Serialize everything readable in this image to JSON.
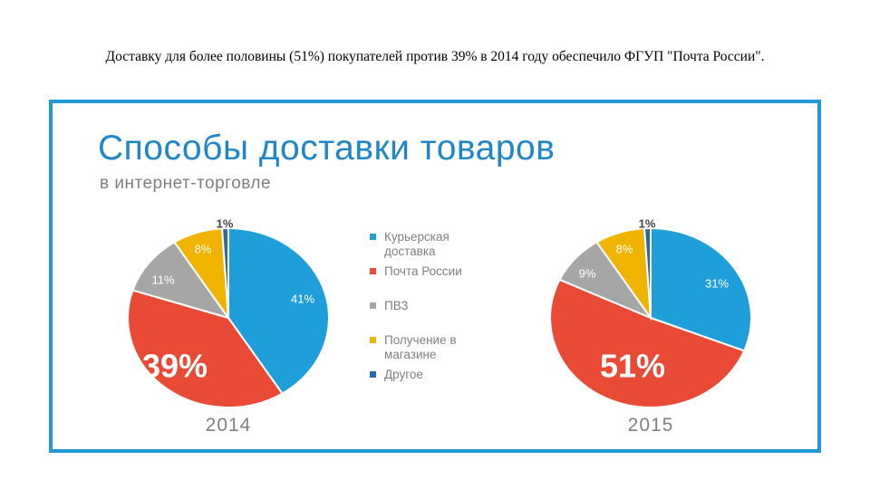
{
  "caption": "Доставку для более половины (51%) покупателей против 39% в 2014 году обеспечило ФГУП \"Почта России\".",
  "title": "Способы доставки товаров",
  "subtitle": "в интернет-торговле",
  "colors": {
    "frame": "#1f9ad6",
    "title": "#1f87c9",
    "muted": "#7f7f7f"
  },
  "chart_data": [
    {
      "type": "pie",
      "year_label": "2014",
      "highlight_label": "39%",
      "slices": [
        {
          "name": "Курьерская доставка",
          "value": 41,
          "label": "41%",
          "color": "#1f9fd9"
        },
        {
          "name": "Почта России",
          "value": 39,
          "label": "39%",
          "color": "#e84a35"
        },
        {
          "name": "ПВЗ",
          "value": 11,
          "label": "11%",
          "color": "#a6a6a6"
        },
        {
          "name": "Получение в магазине",
          "value": 8,
          "label": "8%",
          "color": "#f0b400"
        },
        {
          "name": "Другое",
          "value": 1,
          "label": "1%",
          "color": "#2a6aa8"
        }
      ]
    },
    {
      "type": "pie",
      "year_label": "2015",
      "highlight_label": "51%",
      "slices": [
        {
          "name": "Курьерская доставка",
          "value": 31,
          "label": "31%",
          "color": "#1f9fd9"
        },
        {
          "name": "Почта России",
          "value": 51,
          "label": "51%",
          "color": "#e84a35"
        },
        {
          "name": "ПВЗ",
          "value": 9,
          "label": "9%",
          "color": "#a6a6a6"
        },
        {
          "name": "Получение в магазине",
          "value": 8,
          "label": "8%",
          "color": "#f0b400"
        },
        {
          "name": "Другое",
          "value": 1,
          "label": "1%",
          "color": "#2a6aa8"
        }
      ]
    }
  ],
  "legend": [
    {
      "label": "Курьерская доставка",
      "color": "#1f9fd9"
    },
    {
      "label": "Почта России",
      "color": "#e84a35"
    },
    {
      "label": "ПВЗ",
      "color": "#a6a6a6"
    },
    {
      "label": "Получение в магазине",
      "color": "#f0b400"
    },
    {
      "label": "Другое",
      "color": "#2a6aa8"
    }
  ]
}
